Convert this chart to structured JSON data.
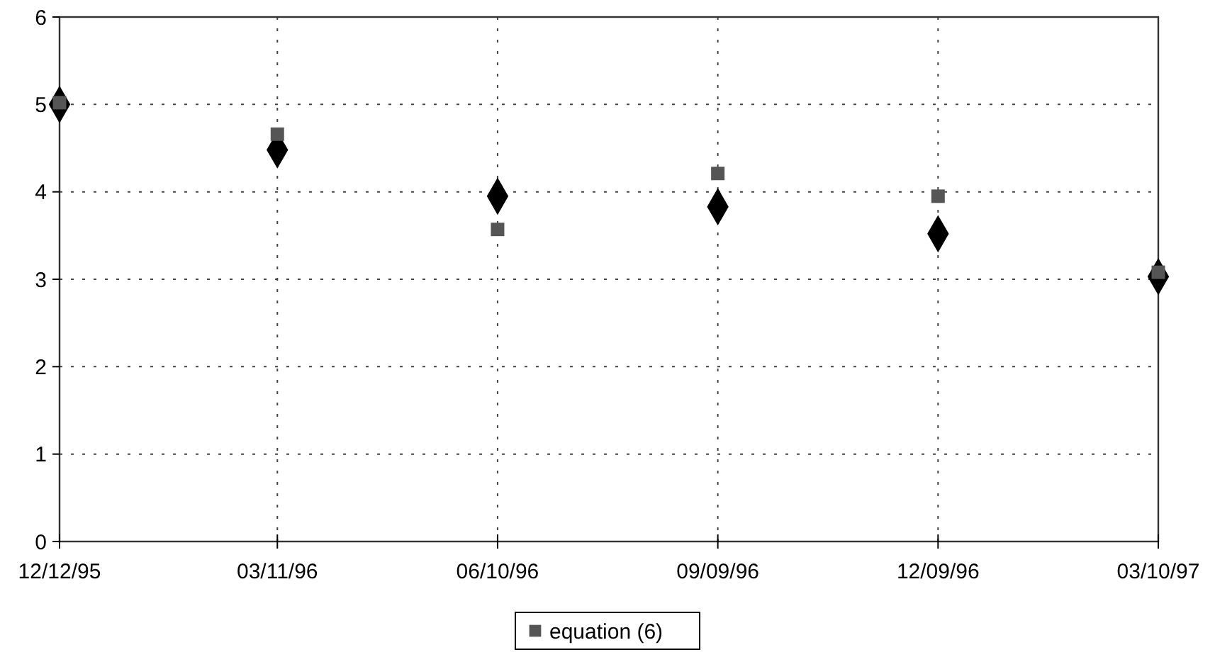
{
  "chart_data": {
    "type": "scatter",
    "x": [
      "1995-12-12",
      "1996-03-11",
      "1996-06-10",
      "1996-09-09",
      "1996-12-09",
      "1997-03-10"
    ],
    "series": [
      {
        "color": "#000000",
        "marker": "diamond",
        "values": [
          5.0,
          4.48,
          3.95,
          3.83,
          3.52,
          3.03
        ]
      },
      {
        "name": "equation (6)",
        "color": "#555555",
        "marker": "square",
        "values": [
          5.02,
          4.66,
          3.57,
          4.21,
          3.95,
          3.08
        ]
      }
    ],
    "xlim": [
      "1995-12-12",
      "1997-03-10"
    ],
    "xticks": [
      {
        "value": "1995-12-12",
        "label": "12/12/95"
      },
      {
        "value": "1996-03-11",
        "label": "03/11/96"
      },
      {
        "value": "1996-06-10",
        "label": "06/10/96"
      },
      {
        "value": "1996-09-09",
        "label": "09/09/96"
      },
      {
        "value": "1996-12-09",
        "label": "12/09/96"
      },
      {
        "value": "1997-03-10",
        "label": "03/10/97"
      }
    ],
    "ylim": [
      0,
      6
    ],
    "yticks": [
      0,
      1,
      2,
      3,
      4,
      5,
      6
    ],
    "grid": true,
    "legend": "bottom"
  }
}
